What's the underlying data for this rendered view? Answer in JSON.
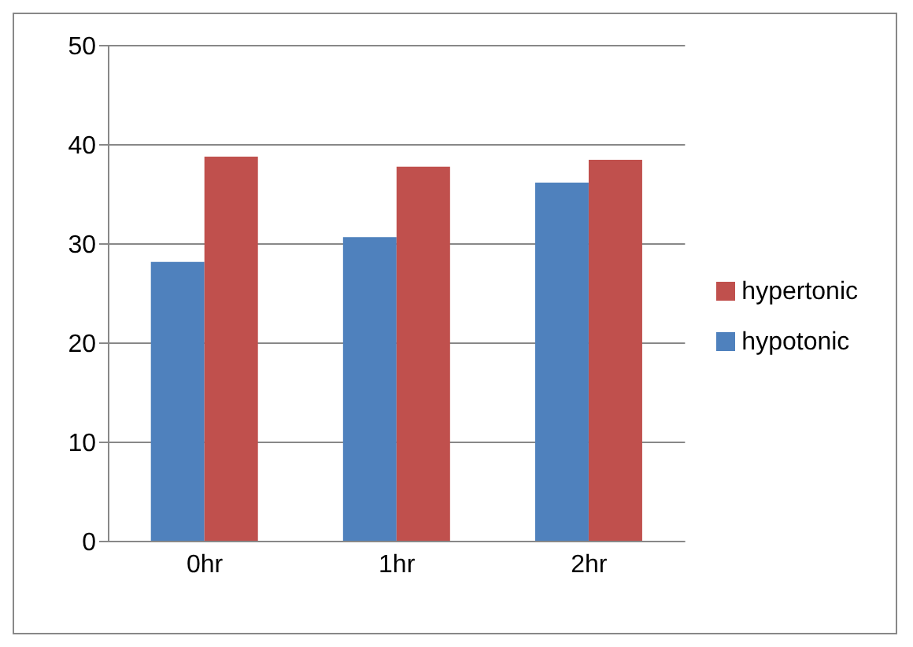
{
  "chart_data": {
    "type": "bar",
    "categories": [
      "0hr",
      "1hr",
      "2hr"
    ],
    "series": [
      {
        "name": "hypotonic",
        "color": "#4f81bd",
        "values": [
          28.2,
          30.7,
          36.2
        ]
      },
      {
        "name": "hypertonic",
        "color": "#c0504d",
        "values": [
          38.8,
          37.8,
          38.5
        ]
      }
    ],
    "ylim": [
      0,
      50
    ],
    "yticks": [
      0,
      10,
      20,
      30,
      40,
      50
    ],
    "grid": "y",
    "legend": "right"
  }
}
